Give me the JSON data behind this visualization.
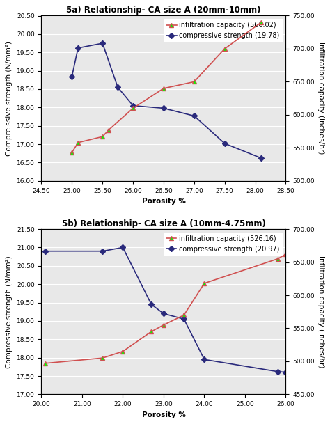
{
  "chart1": {
    "title": "5a) Relationship- CA size A (20mm-10mm)",
    "infil_x": [
      25.0,
      25.1,
      25.5,
      25.6,
      26.0,
      26.5,
      27.0,
      27.5,
      28.1
    ],
    "infil_y": [
      543.0,
      558.0,
      567.0,
      577.0,
      610.0,
      640.0,
      650.0,
      700.0,
      740.0
    ],
    "comp_x": [
      25.0,
      25.1,
      25.5,
      25.75,
      26.0,
      26.5,
      27.0,
      27.5,
      28.1
    ],
    "comp_y": [
      18.85,
      19.62,
      19.75,
      18.55,
      18.05,
      17.98,
      17.77,
      17.02,
      16.62
    ],
    "ylim_left": [
      16.0,
      20.5
    ],
    "ylim_right": [
      500.0,
      750.0
    ],
    "xlim": [
      24.5,
      28.5
    ],
    "xticks": [
      24.5,
      25.0,
      25.5,
      26.0,
      26.5,
      27.0,
      27.5,
      28.0,
      28.5
    ],
    "yticks_left": [
      16.0,
      16.5,
      17.0,
      17.5,
      18.0,
      18.5,
      19.0,
      19.5,
      20.0,
      20.5
    ],
    "yticks_right": [
      500.0,
      550.0,
      600.0,
      650.0,
      700.0,
      750.0
    ],
    "xlabel": "Porosity %",
    "ylabel_left": "Compre ssive strength (N/mm²)",
    "ylabel_right": "Infiltration capacity (inches/hr)",
    "legend_infil": "infiltration capacity (566.02)",
    "legend_comp": "compressive strength (19.78)"
  },
  "chart2": {
    "title": "5b) Relationship- CA size A (10mm-4.75mm)",
    "infil_x": [
      20.1,
      21.5,
      22.0,
      22.7,
      23.0,
      23.5,
      24.0,
      25.8,
      26.0
    ],
    "infil_y": [
      497.0,
      505.0,
      515.0,
      545.0,
      555.0,
      570.0,
      618.0,
      655.0,
      662.0
    ],
    "comp_x": [
      20.1,
      21.5,
      22.0,
      22.7,
      23.0,
      23.5,
      24.0,
      25.8,
      26.0
    ],
    "comp_y": [
      20.9,
      20.9,
      21.0,
      19.45,
      19.2,
      19.05,
      17.95,
      17.62,
      17.6
    ],
    "ylim_left": [
      17.0,
      21.5
    ],
    "ylim_right": [
      450.0,
      700.0
    ],
    "xlim": [
      20.0,
      26.0
    ],
    "xticks": [
      20.0,
      21.0,
      22.0,
      23.0,
      24.0,
      25.0,
      26.0
    ],
    "yticks_left": [
      17.0,
      17.5,
      18.0,
      18.5,
      19.0,
      19.5,
      20.0,
      20.5,
      21.0,
      21.5
    ],
    "yticks_right": [
      450.0,
      500.0,
      550.0,
      600.0,
      650.0,
      700.0
    ],
    "xlabel": "Porosity %",
    "ylabel_left": "Compressive strength (N/mm²)",
    "ylabel_right": "Infiltration capacity (inches/hr)",
    "legend_infil": "infiltration capacity (526.16)",
    "legend_comp": "compressive strength (20.97)"
  },
  "infil_color": "#d05050",
  "comp_color": "#2a2a7c",
  "bg_color": "#e8e8e8",
  "title_fontsize": 8.5,
  "label_fontsize": 7.5,
  "tick_fontsize": 6.5,
  "legend_fontsize": 7.0
}
